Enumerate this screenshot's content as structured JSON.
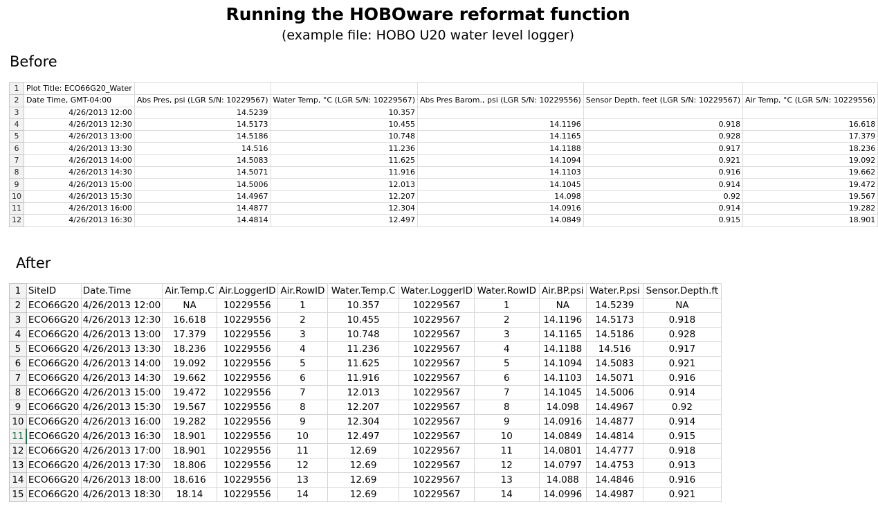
{
  "title": "Running the HOBOware reformat function",
  "subtitle": "(example file: HOBO U20 water level logger)",
  "before_label": "Before",
  "after_label": "After",
  "before": {
    "rows": [
      [
        "1",
        "Plot Title: ECO66G20_Water",
        "",
        "",
        "",
        "",
        ""
      ],
      [
        "2",
        "Date Time, GMT-04:00",
        "Abs Pres, psi (LGR S/N: 10229567)",
        "Water Temp, °C (LGR S/N: 10229567)",
        "Abs Pres Barom., psi (LGR S/N: 10229556)",
        "Sensor Depth, feet (LGR S/N: 10229567)",
        "Air Temp, °C (LGR S/N: 10229556)"
      ],
      [
        "3",
        "4/26/2013 12:00",
        "14.5239",
        "10.357",
        "",
        "",
        ""
      ],
      [
        "4",
        "4/26/2013 12:30",
        "14.5173",
        "10.455",
        "14.1196",
        "0.918",
        "16.618"
      ],
      [
        "5",
        "4/26/2013 13:00",
        "14.5186",
        "10.748",
        "14.1165",
        "0.928",
        "17.379"
      ],
      [
        "6",
        "4/26/2013 13:30",
        "14.516",
        "11.236",
        "14.1188",
        "0.917",
        "18.236"
      ],
      [
        "7",
        "4/26/2013 14:00",
        "14.5083",
        "11.625",
        "14.1094",
        "0.921",
        "19.092"
      ],
      [
        "8",
        "4/26/2013 14:30",
        "14.5071",
        "11.916",
        "14.1103",
        "0.916",
        "19.662"
      ],
      [
        "9",
        "4/26/2013 15:00",
        "14.5006",
        "12.013",
        "14.1045",
        "0.914",
        "19.472"
      ],
      [
        "10",
        "4/26/2013 15:30",
        "14.4967",
        "12.207",
        "14.098",
        "0.92",
        "19.567"
      ],
      [
        "11",
        "4/26/2013 16:00",
        "14.4877",
        "12.304",
        "14.0916",
        "0.914",
        "19.282"
      ],
      [
        "12",
        "4/26/2013 16:30",
        "14.4814",
        "12.497",
        "14.0849",
        "0.915",
        "18.901"
      ]
    ]
  },
  "after": {
    "rows": [
      [
        "1",
        "SiteID",
        "Date.Time",
        "Air.Temp.C",
        "Air.LoggerID",
        "Air.RowID",
        "Water.Temp.C",
        "Water.LoggerID",
        "Water.RowID",
        "Air.BP.psi",
        "Water.P.psi",
        "Sensor.Depth.ft"
      ],
      [
        "2",
        "ECO66G20",
        "4/26/2013 12:00",
        "NA",
        "10229556",
        "1",
        "10.357",
        "10229567",
        "1",
        "NA",
        "14.5239",
        "NA"
      ],
      [
        "3",
        "ECO66G20",
        "4/26/2013 12:30",
        "16.618",
        "10229556",
        "2",
        "10.455",
        "10229567",
        "2",
        "14.1196",
        "14.5173",
        "0.918"
      ],
      [
        "4",
        "ECO66G20",
        "4/26/2013 13:00",
        "17.379",
        "10229556",
        "3",
        "10.748",
        "10229567",
        "3",
        "14.1165",
        "14.5186",
        "0.928"
      ],
      [
        "5",
        "ECO66G20",
        "4/26/2013 13:30",
        "18.236",
        "10229556",
        "4",
        "11.236",
        "10229567",
        "4",
        "14.1188",
        "14.516",
        "0.917"
      ],
      [
        "6",
        "ECO66G20",
        "4/26/2013 14:00",
        "19.092",
        "10229556",
        "5",
        "11.625",
        "10229567",
        "5",
        "14.1094",
        "14.5083",
        "0.921"
      ],
      [
        "7",
        "ECO66G20",
        "4/26/2013 14:30",
        "19.662",
        "10229556",
        "6",
        "11.916",
        "10229567",
        "6",
        "14.1103",
        "14.5071",
        "0.916"
      ],
      [
        "8",
        "ECO66G20",
        "4/26/2013 15:00",
        "19.472",
        "10229556",
        "7",
        "12.013",
        "10229567",
        "7",
        "14.1045",
        "14.5006",
        "0.914"
      ],
      [
        "9",
        "ECO66G20",
        "4/26/2013 15:30",
        "19.567",
        "10229556",
        "8",
        "12.207",
        "10229567",
        "8",
        "14.098",
        "14.4967",
        "0.92"
      ],
      [
        "10",
        "ECO66G20",
        "4/26/2013 16:00",
        "19.282",
        "10229556",
        "9",
        "12.304",
        "10229567",
        "9",
        "14.0916",
        "14.4877",
        "0.914"
      ],
      [
        "11",
        "ECO66G20",
        "4/26/2013 16:30",
        "18.901",
        "10229556",
        "10",
        "12.497",
        "10229567",
        "10",
        "14.0849",
        "14.4814",
        "0.915"
      ],
      [
        "12",
        "ECO66G20",
        "4/26/2013 17:00",
        "18.901",
        "10229556",
        "11",
        "12.69",
        "10229567",
        "11",
        "14.0801",
        "14.4777",
        "0.918"
      ],
      [
        "13",
        "ECO66G20",
        "4/26/2013 17:30",
        "18.806",
        "10229556",
        "12",
        "12.69",
        "10229567",
        "12",
        "14.0797",
        "14.4753",
        "0.913"
      ],
      [
        "14",
        "ECO66G20",
        "4/26/2013 18:00",
        "18.616",
        "10229556",
        "13",
        "12.69",
        "10229567",
        "13",
        "14.088",
        "14.4846",
        "0.916"
      ],
      [
        "15",
        "ECO66G20",
        "4/26/2013 18:30",
        "18.14",
        "10229556",
        "14",
        "12.69",
        "10229567",
        "14",
        "14.0996",
        "14.4987",
        "0.921"
      ]
    ]
  }
}
